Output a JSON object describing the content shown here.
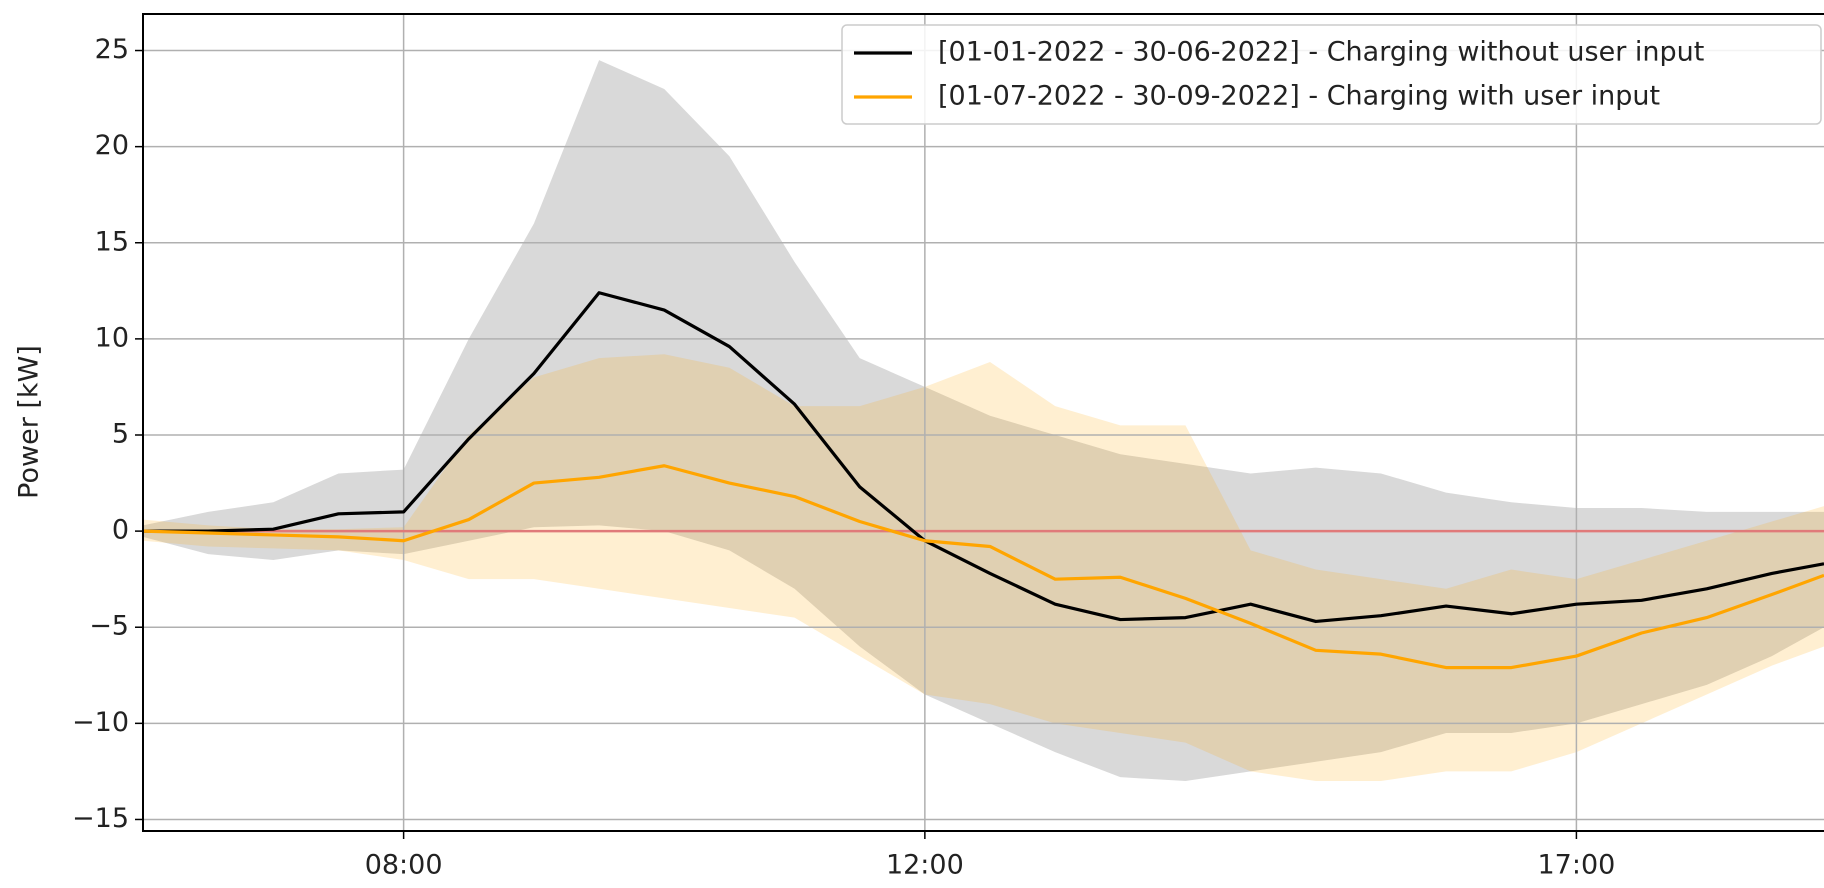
{
  "chart_data": {
    "type": "line",
    "y_label": "Power [kW]",
    "x": [
      6,
      6.5,
      7,
      7.5,
      8,
      8.5,
      9,
      9.5,
      10,
      10.5,
      11,
      11.5,
      12,
      12.5,
      13,
      13.5,
      14,
      14.5,
      15,
      15.5,
      16,
      16.5,
      17,
      17.5,
      18,
      18.5,
      18.9
    ],
    "xlim": [
      6,
      18.9
    ],
    "xticks": [
      {
        "value": 8,
        "label": "08:00"
      },
      {
        "value": 12,
        "label": "12:00"
      },
      {
        "value": 17,
        "label": "17:00"
      }
    ],
    "ylim": [
      -15.6,
      26.9
    ],
    "yticks": [
      {
        "value": -15,
        "label": "−15"
      },
      {
        "value": -10,
        "label": "−10"
      },
      {
        "value": -5,
        "label": "−5"
      },
      0,
      5,
      10,
      15,
      20,
      25
    ],
    "grid": true,
    "legend": "upper right",
    "reference_line": {
      "value": 0,
      "color": "#e07a7a"
    },
    "series": [
      {
        "name": "[01-01-2022 - 30-06-2022] - Charging without user input",
        "color": "#000000",
        "band_color": "#d9d9d9",
        "band_opacity": 1,
        "values": [
          0,
          0,
          0.1,
          0.9,
          1.0,
          4.8,
          8.2,
          12.4,
          11.5,
          9.6,
          6.6,
          2.3,
          -0.5,
          -2.2,
          -3.8,
          -4.6,
          -4.5,
          -3.8,
          -4.7,
          -4.4,
          -3.9,
          -4.3,
          -3.8,
          -3.6,
          -3.0,
          -2.2,
          -1.7
        ],
        "upper": [
          0.3,
          1.0,
          1.5,
          3,
          3.2,
          10,
          16,
          24.5,
          23,
          19.5,
          14,
          9,
          7.5,
          6,
          5,
          4,
          3.5,
          3,
          3.3,
          3,
          2,
          1.5,
          1.2,
          1.2,
          1,
          1,
          1
        ],
        "lower": [
          -0.3,
          -1.2,
          -1.5,
          -1,
          -1.2,
          -0.5,
          0.2,
          0.3,
          0,
          -1,
          -3,
          -6,
          -8.5,
          -10,
          -11.5,
          -12.8,
          -13,
          -12.5,
          -12,
          -11.5,
          -10.5,
          -10.5,
          -10,
          -9,
          -8,
          -6.5,
          -5
        ]
      },
      {
        "name": "[01-07-2022 - 30-09-2022] - Charging with user input",
        "color": "#ffa500",
        "band_color": "#ffa500",
        "band_opacity": 0.18,
        "values": [
          0,
          -0.1,
          -0.2,
          -0.3,
          -0.5,
          0.6,
          2.5,
          2.8,
          3.4,
          2.5,
          1.8,
          0.5,
          -0.5,
          -0.8,
          -2.5,
          -2.4,
          -3.5,
          -4.8,
          -6.2,
          -6.4,
          -7.1,
          -7.1,
          -6.5,
          -5.3,
          -4.5,
          -3.3,
          -2.3
        ],
        "upper": [
          0.6,
          0.3,
          0.1,
          0.1,
          0.2,
          5,
          8,
          9,
          9.2,
          8.5,
          6.5,
          6.5,
          7.5,
          8.8,
          6.5,
          5.5,
          5.5,
          -1,
          -2,
          -2.5,
          -3,
          -2,
          -2.5,
          -1.5,
          -0.5,
          0.5,
          1.3
        ],
        "lower": [
          -0.5,
          -0.8,
          -0.9,
          -1,
          -1.5,
          -2.5,
          -2.5,
          -3,
          -3.5,
          -4,
          -4.5,
          -6.5,
          -8.5,
          -9,
          -10,
          -10.5,
          -11,
          -12.5,
          -13,
          -13,
          -12.5,
          -12.5,
          -11.5,
          -10,
          -8.5,
          -7,
          -6
        ]
      }
    ]
  }
}
